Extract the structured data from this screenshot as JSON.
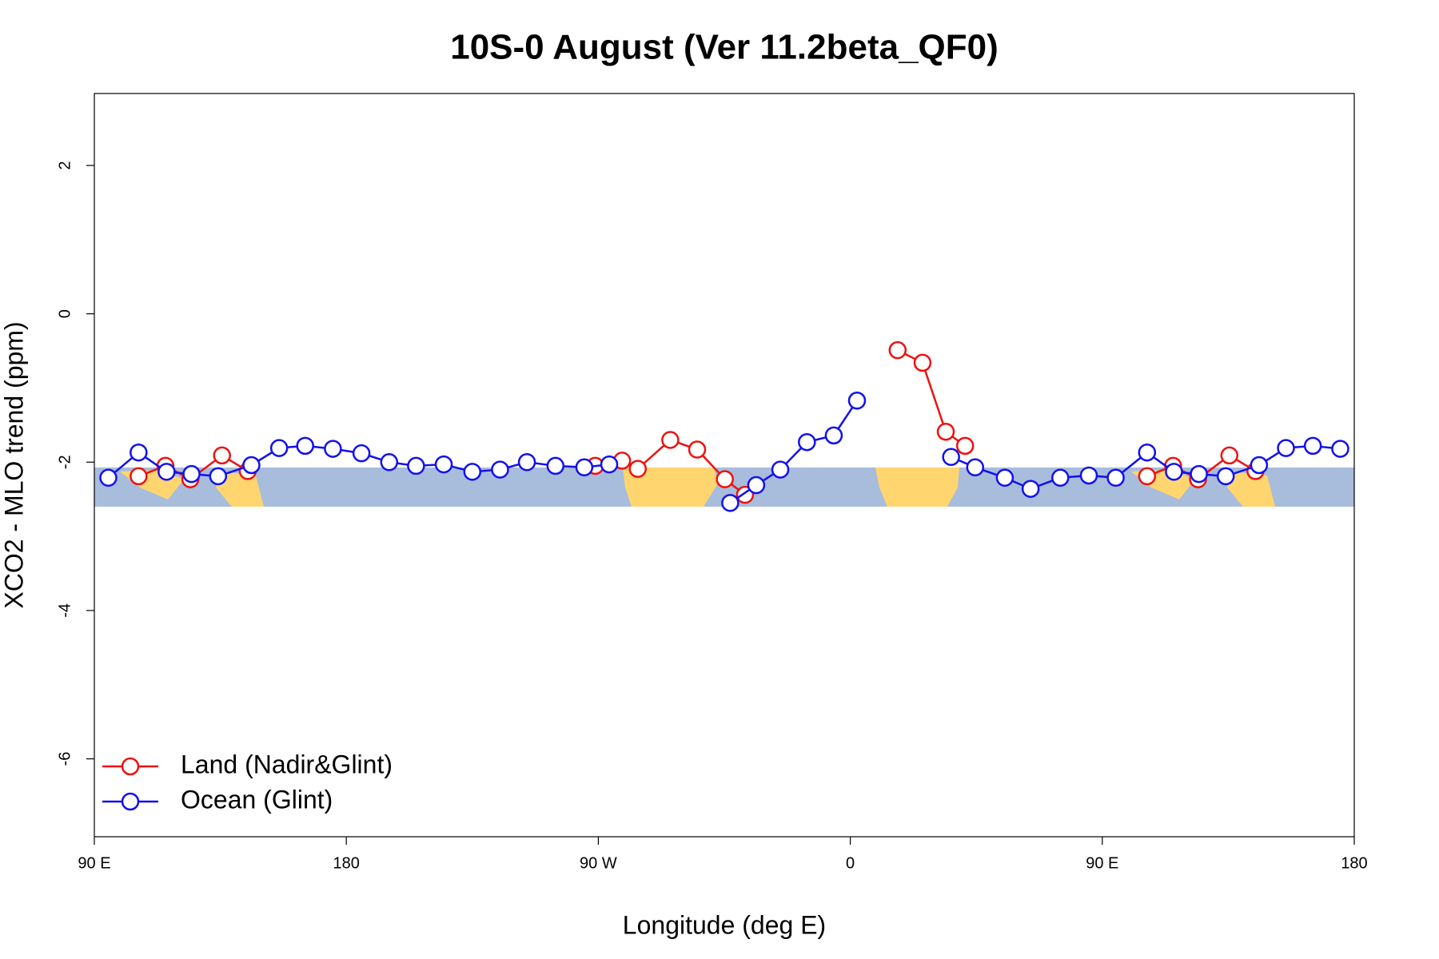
{
  "chart_data": {
    "type": "line",
    "title": "10S-0 August (Ver 11.2beta_QF0)",
    "x_label": "Longitude (deg E)",
    "y_label": "XCO2 - MLO trend (ppm)",
    "xlim": [
      90,
      540
    ],
    "xticks": [
      {
        "value": 90,
        "label": "90 E"
      },
      180,
      {
        "value": 270,
        "label": "90 W"
      },
      {
        "value": 360,
        "label": "0"
      },
      {
        "value": 450,
        "label": "90 E"
      },
      {
        "value": 540,
        "label": "180"
      }
    ],
    "ylim": [
      -7.05,
      2.97
    ],
    "yticks": [
      2,
      0,
      -2,
      -4,
      -6
    ],
    "legend": "bottomleft",
    "series": [
      {
        "name": "Land (Nadir&Glint)",
        "color": "#ee1111",
        "x": [
          105.8,
          115.4,
          124.3,
          135.6,
          144.8,
          null,
          268.9,
          278.5,
          284.1,
          295.7,
          305.3,
          315.2,
          322.4,
          null,
          376.9,
          385.8,
          394.1,
          401.0,
          null,
          466.0,
          475.3,
          484.2,
          495.4,
          504.7
        ],
        "values": [
          -2.19,
          -2.05,
          -2.23,
          -1.91,
          -2.12,
          null,
          -2.05,
          -1.98,
          -2.09,
          -1.7,
          -1.83,
          -2.23,
          -2.44,
          null,
          -0.49,
          -0.66,
          -1.59,
          -1.78,
          null,
          -2.19,
          -2.05,
          -2.23,
          -1.91,
          -2.12
        ]
      },
      {
        "name": "Ocean (Glint)",
        "color": "#1111ee",
        "x": [
          95.0,
          105.8,
          115.8,
          124.7,
          134.2,
          146.1,
          156.0,
          165.3,
          175.2,
          185.4,
          195.3,
          204.9,
          214.8,
          225.0,
          234.9,
          244.5,
          254.7,
          265.0,
          273.9,
          null,
          317.1,
          326.4,
          335.0,
          344.5,
          354.1,
          362.4,
          null,
          396.0,
          404.6,
          415.2,
          424.4,
          435.0,
          445.2,
          454.8,
          466.0,
          475.6,
          484.5,
          494.1,
          506.0,
          515.6,
          525.2,
          535.0
        ],
        "values": [
          -2.21,
          -1.87,
          -2.13,
          -2.16,
          -2.19,
          -2.04,
          -1.81,
          -1.78,
          -1.82,
          -1.88,
          -2.0,
          -2.05,
          -2.03,
          -2.13,
          -2.1,
          -2.0,
          -2.05,
          -2.07,
          -2.03,
          null,
          -2.55,
          -2.31,
          -2.1,
          -1.73,
          -1.64,
          -1.17,
          null,
          -1.93,
          -2.07,
          -2.21,
          -2.36,
          -2.21,
          -2.18,
          -2.21,
          -1.87,
          -2.13,
          -2.16,
          -2.19,
          -2.04,
          -1.81,
          -1.78,
          -1.82
        ]
      }
    ]
  }
}
